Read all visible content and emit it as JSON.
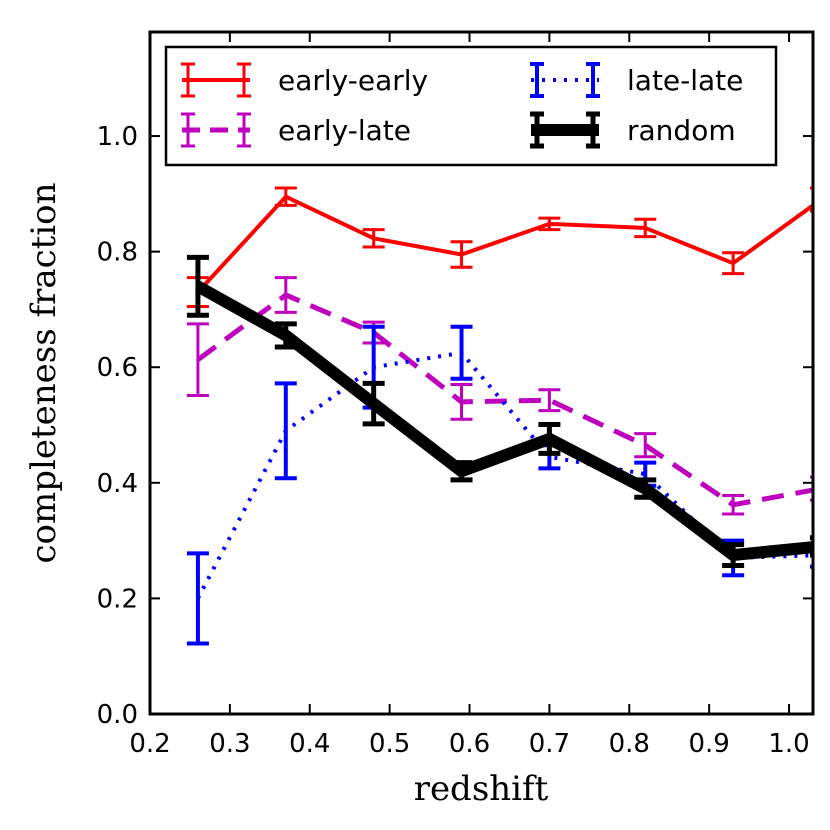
{
  "chart_data": {
    "type": "line",
    "xlabel": "redshift",
    "ylabel": "completeness fraction",
    "xlim": [
      0.2,
      1.03
    ],
    "ylim": [
      0.0,
      1.18
    ],
    "x_ticks": [
      "0.2",
      "0.3",
      "0.4",
      "0.5",
      "0.6",
      "0.7",
      "0.8",
      "0.9",
      "1.0"
    ],
    "y_ticks": [
      "0.0",
      "0.2",
      "0.4",
      "0.6",
      "0.8",
      "1.0"
    ],
    "x_tick_values": [
      0.2,
      0.3,
      0.4,
      0.5,
      0.6,
      0.7,
      0.8,
      0.9,
      1.0
    ],
    "y_tick_values": [
      0.0,
      0.2,
      0.4,
      0.6,
      0.8,
      1.0
    ],
    "grid": false,
    "legend_position": "top",
    "series": [
      {
        "name": "early-early",
        "color": "#ff0000",
        "style": "solid",
        "x": [
          0.26,
          0.37,
          0.48,
          0.59,
          0.7,
          0.82,
          0.93,
          1.04
        ],
        "y": [
          0.73,
          0.895,
          0.823,
          0.795,
          0.848,
          0.841,
          0.78,
          0.89
        ],
        "err": [
          0.025,
          0.015,
          0.015,
          0.022,
          0.01,
          0.015,
          0.018,
          0.02
        ]
      },
      {
        "name": "early-late",
        "color": "#bf00bf",
        "style": "dashed",
        "x": [
          0.26,
          0.37,
          0.48,
          0.59,
          0.7,
          0.82,
          0.93,
          1.04
        ],
        "y": [
          0.613,
          0.725,
          0.66,
          0.54,
          0.543,
          0.465,
          0.362,
          0.39
        ],
        "err": [
          0.062,
          0.03,
          0.018,
          0.03,
          0.018,
          0.02,
          0.016,
          0.02
        ]
      },
      {
        "name": "late-late",
        "color": "#0000ff",
        "style": "dotted",
        "x": [
          0.26,
          0.37,
          0.48,
          0.59,
          0.7,
          0.82,
          0.93,
          1.04
        ],
        "y": [
          0.2,
          0.49,
          0.6,
          0.625,
          0.445,
          0.415,
          0.27,
          0.275
        ],
        "err": [
          0.078,
          0.082,
          0.07,
          0.045,
          0.02,
          0.02,
          0.03,
          0.02
        ]
      },
      {
        "name": "random",
        "color": "#000000",
        "style": "solid-thick",
        "x": [
          0.26,
          0.37,
          0.48,
          0.59,
          0.7,
          0.82,
          0.93,
          1.04
        ],
        "y": [
          0.74,
          0.655,
          0.537,
          0.42,
          0.476,
          0.39,
          0.275,
          0.29
        ],
        "err": [
          0.05,
          0.02,
          0.035,
          0.015,
          0.025,
          0.015,
          0.018,
          0.015
        ]
      }
    ]
  }
}
